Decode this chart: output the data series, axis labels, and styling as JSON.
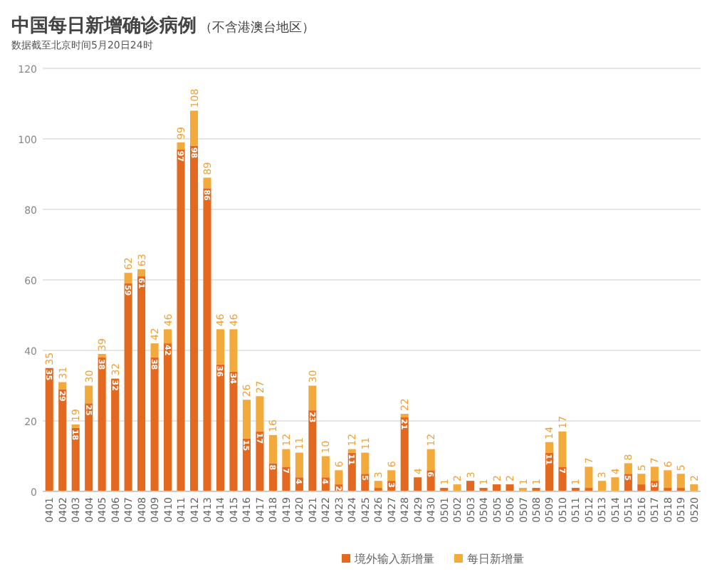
{
  "chart_data": {
    "type": "bar",
    "stacked": true,
    "title": "中国每日新增确诊病例",
    "subtitle": "（不含港澳台地区）",
    "annotations": [
      "数据截至北京时间5月20日24时"
    ],
    "categories": [
      "0401",
      "0402",
      "0403",
      "0404",
      "0405",
      "0406",
      "0407",
      "0408",
      "0409",
      "0410",
      "0411",
      "0412",
      "0413",
      "0414",
      "0415",
      "0416",
      "0417",
      "0418",
      "0419",
      "0420",
      "0421",
      "0422",
      "0423",
      "0424",
      "0425",
      "0426",
      "0427",
      "0428",
      "0429",
      "0430",
      "0501",
      "0502",
      "0503",
      "0504",
      "0505",
      "0506",
      "0507",
      "0508",
      "0509",
      "0510",
      "0511",
      "0512",
      "0513",
      "0514",
      "0515",
      "0516",
      "0517",
      "0518",
      "0519",
      "0520"
    ],
    "series": [
      {
        "name": "境外输入新增量",
        "color": "#e2691f",
        "values": [
          35,
          29,
          18,
          25,
          38,
          32,
          59,
          61,
          38,
          42,
          97,
          98,
          86,
          36,
          34,
          15,
          17,
          8,
          7,
          4,
          23,
          4,
          2,
          11,
          5,
          1,
          3,
          21,
          4,
          6,
          1,
          0,
          3,
          1,
          2,
          2,
          0,
          1,
          11,
          7,
          1,
          1,
          0,
          0,
          5,
          2,
          3,
          1,
          1,
          0
        ],
        "value_labels": [
          "35",
          "29",
          "18",
          "25",
          "38",
          "32",
          "59",
          "61",
          "38",
          "42",
          "97",
          "98",
          "86",
          "36",
          "34",
          "15",
          "17",
          "8",
          "7",
          "4",
          "23",
          "4",
          "2",
          "11",
          "5",
          null,
          "3",
          "21",
          null,
          "6",
          null,
          null,
          null,
          null,
          null,
          null,
          null,
          null,
          "11",
          "7",
          null,
          null,
          null,
          null,
          "5",
          null,
          "3",
          null,
          null,
          null
        ]
      },
      {
        "name": "每日新增量",
        "color": "#f2aa3c",
        "values": [
          0,
          2,
          1,
          5,
          1,
          0,
          3,
          2,
          4,
          4,
          2,
          10,
          3,
          10,
          12,
          11,
          10,
          8,
          5,
          7,
          7,
          6,
          4,
          1,
          6,
          2,
          3,
          1,
          0,
          6,
          0,
          2,
          0,
          0,
          0,
          0,
          1,
          0,
          3,
          10,
          0,
          6,
          3,
          4,
          3,
          3,
          4,
          5,
          4,
          2
        ]
      }
    ],
    "totals": [
      "35",
      "31",
      "19",
      "30",
      "39",
      "32",
      "62",
      "63",
      "42",
      "46",
      "99",
      "108",
      "89",
      "46",
      "46",
      "26",
      "27",
      "16",
      "12",
      "11",
      "30",
      "10",
      "6",
      "12",
      "11",
      "3",
      "6",
      "22",
      "4",
      "12",
      "1",
      "2",
      "3",
      "1",
      "2",
      "2",
      "1",
      "1",
      "14",
      "17",
      "1",
      "7",
      "3",
      "4",
      "8",
      "5",
      "7",
      "6",
      "5",
      "2"
    ],
    "ylim": [
      0,
      120
    ],
    "yticks": [
      0,
      20,
      40,
      60,
      80,
      100,
      120
    ],
    "grid": "y",
    "legend": "bottom"
  }
}
